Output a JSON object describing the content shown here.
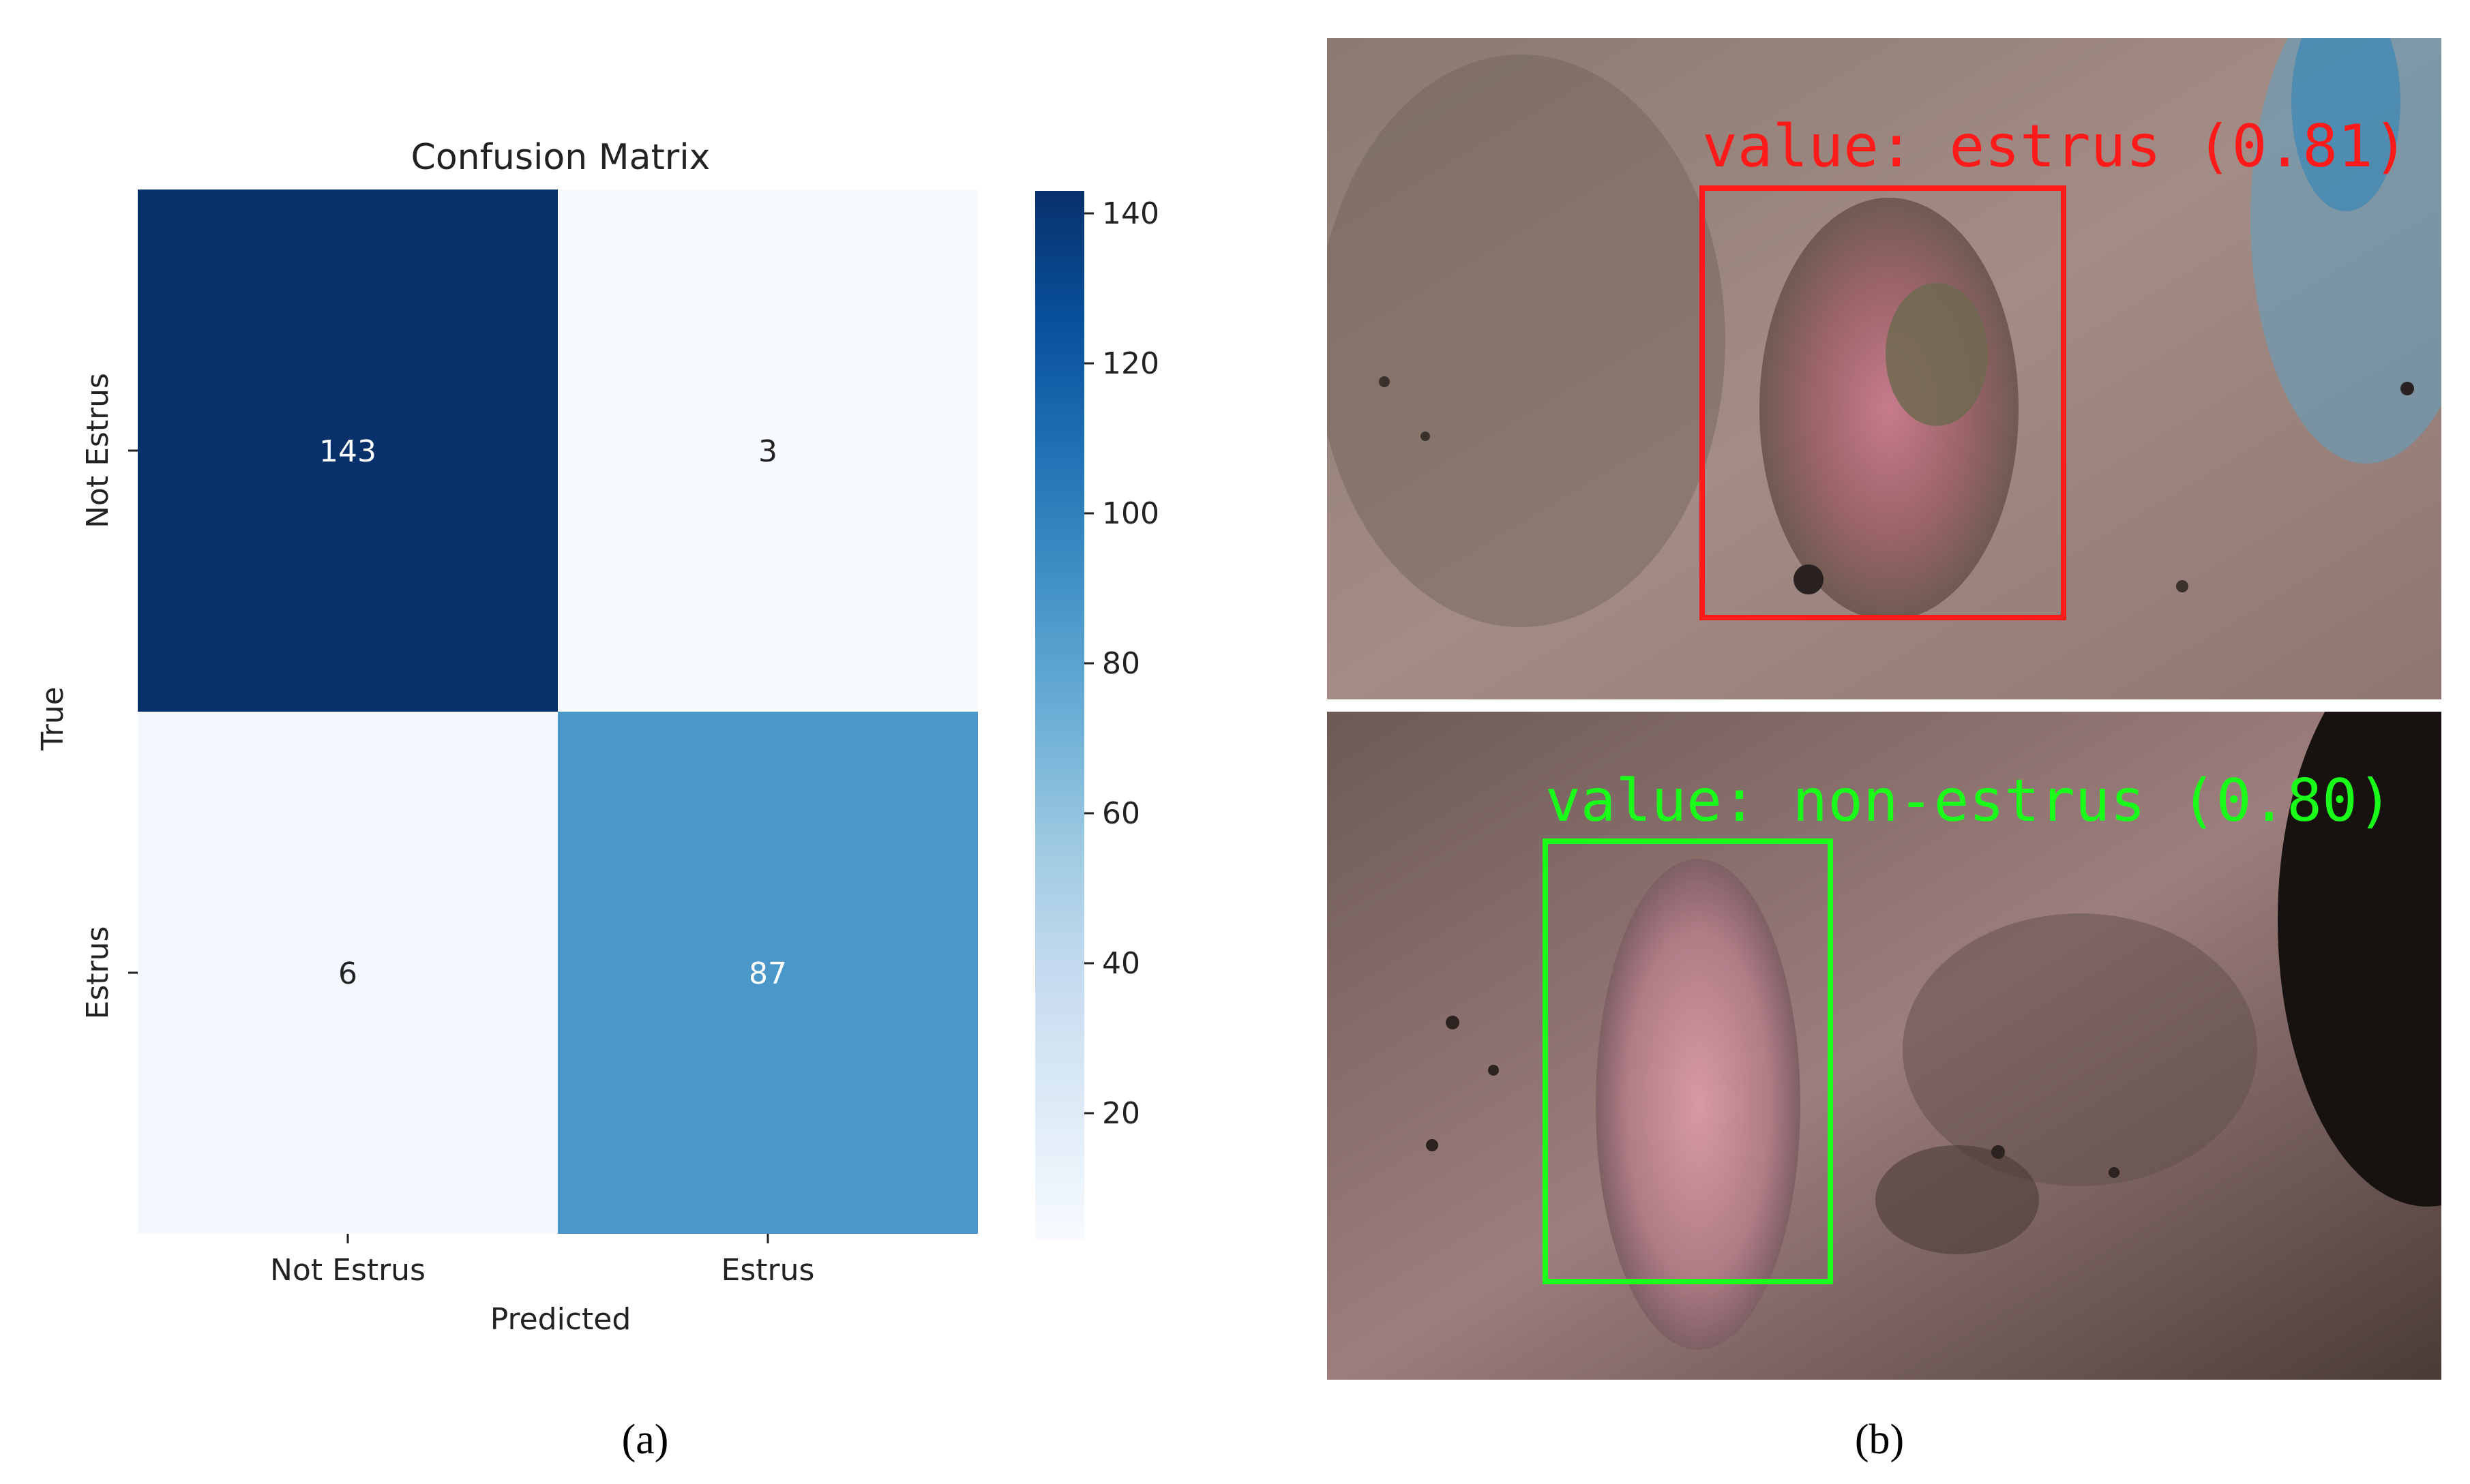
{
  "chart_data": {
    "type": "heatmap",
    "title": "Confusion Matrix",
    "xlabel": "Predicted",
    "ylabel": "True",
    "x_categories": [
      "Not Estrus",
      "Estrus"
    ],
    "y_categories": [
      "Not Estrus",
      "Estrus"
    ],
    "values": [
      [
        143,
        3
      ],
      [
        6,
        87
      ]
    ],
    "colormap": "Blues",
    "colorbar": {
      "range": [
        3,
        143
      ],
      "ticks": [
        20,
        40,
        60,
        80,
        100,
        120,
        140
      ]
    }
  },
  "captions": {
    "a": "(a)",
    "b": "(b)"
  },
  "detections": [
    {
      "label": "value: estrus (0.81)",
      "color": "#ff1a1a"
    },
    {
      "label": "value: non-estrus (0.80)",
      "color": "#1aff1a"
    }
  ]
}
